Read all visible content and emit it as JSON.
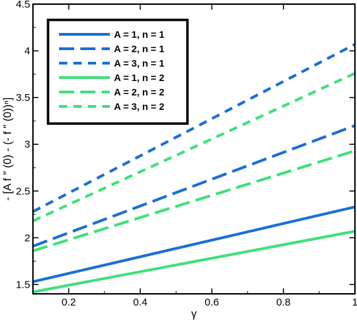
{
  "chart_data": {
    "type": "line",
    "xlabel": "γ",
    "ylabel": "- [A f ″ (0) - (- f ″ (0))ⁿ]",
    "xlim": [
      0.1,
      1.0
    ],
    "ylim": [
      1.4,
      4.5
    ],
    "x_ticks": [
      "0.2",
      "0.4",
      "0.6",
      "0.8",
      "1"
    ],
    "y_ticks": [
      "1.5",
      "2",
      "2.5",
      "3",
      "3.5",
      "4",
      "4.5"
    ],
    "grid": false,
    "legend_position": "top-left",
    "x": [
      0.1,
      1.0
    ],
    "series": [
      {
        "name": "A = 1, n = 1",
        "color": "#1a6fd6",
        "dash": "solid",
        "values": [
          1.53,
          2.33
        ]
      },
      {
        "name": "A = 2, n = 1",
        "color": "#1a6fd6",
        "dash": "long-dash",
        "values": [
          1.91,
          3.2
        ]
      },
      {
        "name": "A = 3, n = 1",
        "color": "#1a6fd6",
        "dash": "short-dash",
        "values": [
          2.28,
          4.07
        ]
      },
      {
        "name": "A = 1, n = 2",
        "color": "#3fe07a",
        "dash": "solid",
        "values": [
          1.42,
          2.07
        ]
      },
      {
        "name": "A = 2, n = 2",
        "color": "#3fe07a",
        "dash": "long-dash",
        "values": [
          1.86,
          2.93
        ]
      },
      {
        "name": "A = 3, n = 2",
        "color": "#3fe07a",
        "dash": "short-dash",
        "values": [
          2.18,
          3.76
        ]
      }
    ]
  }
}
